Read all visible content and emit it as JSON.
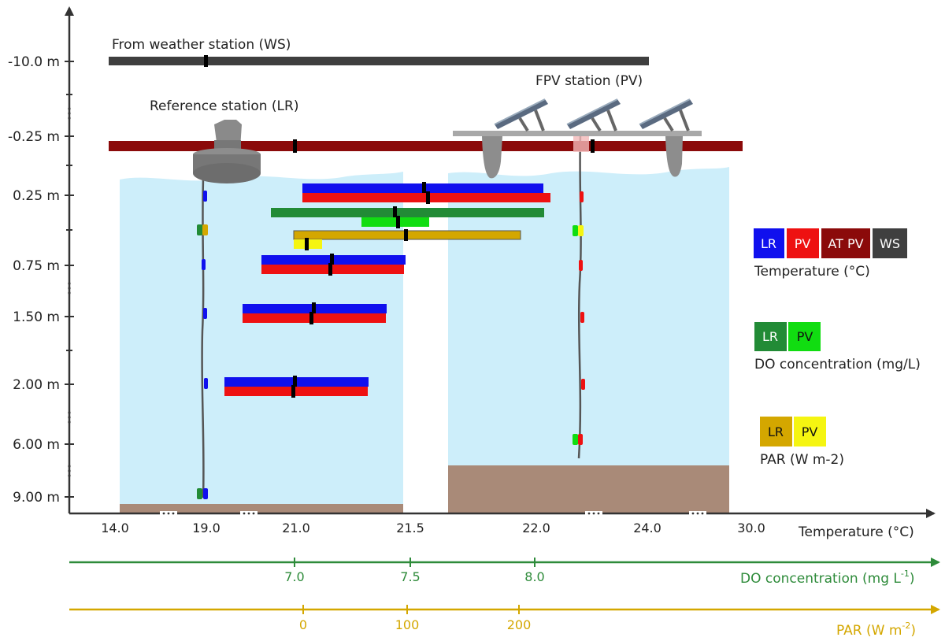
{
  "colors": {
    "water": "#cdeefa",
    "sediment": "#a98a78",
    "lr_temp": "#1010ee",
    "pv_temp": "#ee1111",
    "at_pv": "#8b0a0a",
    "ws": "#3f3f3f",
    "lr_do": "#228b36",
    "pv_do": "#11dd11",
    "lr_par": "#d4a700",
    "pv_par": "#f5f511",
    "do_axis": "#2e8b3a",
    "par_axis": "#d4a700",
    "axis": "#333333",
    "mean_mark": "#000000"
  },
  "labels": {
    "weather_station": "From weather station (WS)",
    "reference_station": "Reference station (LR)",
    "fpv_station": "FPV station (PV)"
  },
  "depth_labels": [
    "-10.0 m",
    "-0.25 m",
    "0.25 m",
    "0.75 m",
    "1.50 m",
    "2.00 m",
    "6.00 m",
    "9.00 m"
  ],
  "temperature_axis": {
    "title": "Temperature (°C)",
    "ticks": [
      "14.0",
      "19.0",
      "21.0",
      "21.5",
      "22.0",
      "24.0",
      "30.0"
    ]
  },
  "do_axis": {
    "title": "DO concentration (mg L",
    "title_sup": "-1",
    "title_end": ")",
    "ticks": [
      "7.0",
      "7.5",
      "8.0"
    ]
  },
  "par_axis": {
    "title": "PAR (W m",
    "title_sup": "-2",
    "title_end": ")",
    "ticks": [
      "0",
      "100",
      "200"
    ]
  },
  "legend": {
    "temperature": {
      "items": [
        "LR",
        "PV",
        "AT PV",
        "WS"
      ],
      "caption": "Temperature (°C)"
    },
    "do": {
      "items": [
        "LR",
        "PV"
      ],
      "caption": "DO concentration (mg/L)"
    },
    "par": {
      "items": [
        "LR",
        "PV"
      ],
      "caption": "PAR (W m-2)"
    }
  }
}
